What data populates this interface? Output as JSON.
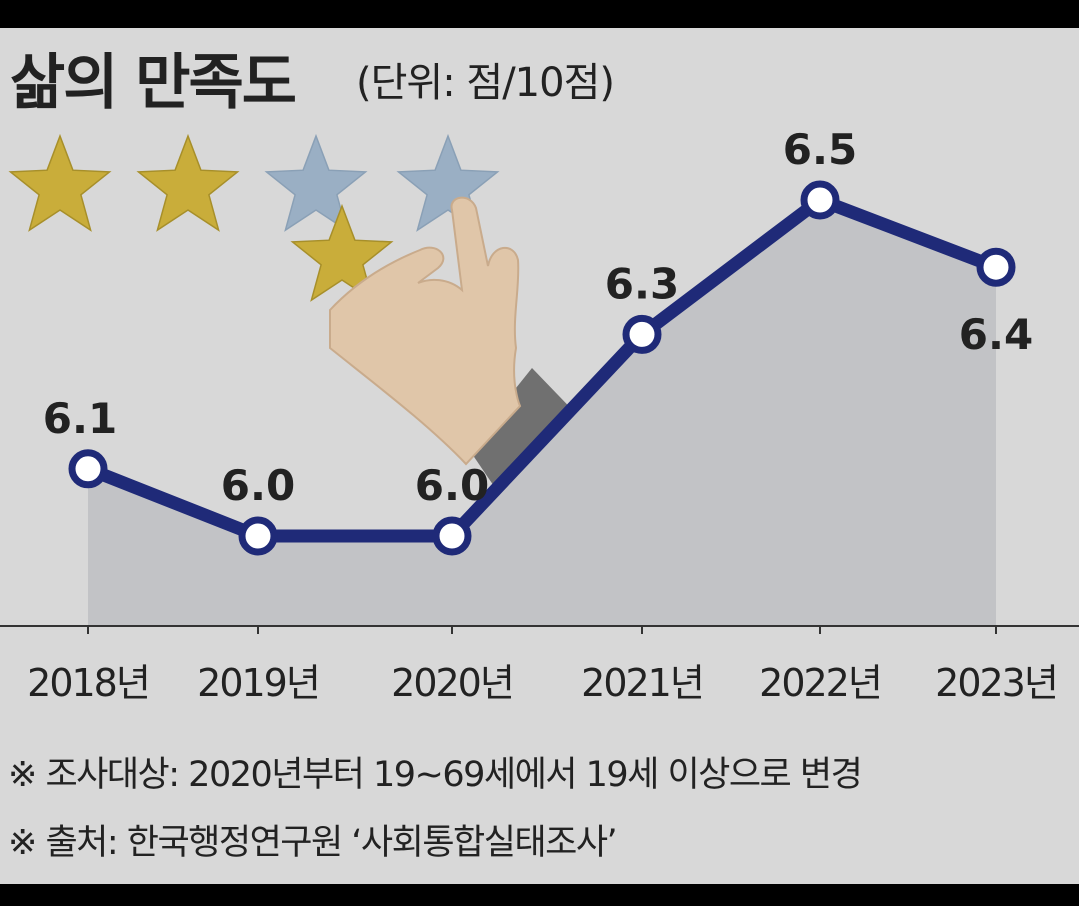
{
  "chart_data": {
    "type": "line",
    "title": "삶의 만족도",
    "unit": "(단위: 점/10점)",
    "categories": [
      "2018년",
      "2019년",
      "2020년",
      "2021년",
      "2022년",
      "2023년"
    ],
    "values": [
      6.1,
      6.0,
      6.0,
      6.3,
      6.5,
      6.4
    ],
    "value_labels": [
      "6.1",
      "6.0",
      "6.0",
      "6.3",
      "6.5",
      "6.4"
    ],
    "xlabel": "",
    "ylabel": "",
    "grid": false,
    "line_color": "#1f2a78",
    "area_color": "#c2c3c6"
  },
  "notes": [
    "※ 조사대상: 2020년부터 19~69세에서 19세 이상으로 변경",
    "※ 출처: 한국행정연구원 ‘사회통합실태조사’"
  ],
  "illustration": {
    "icons": [
      "star-icon",
      "hand-icon"
    ],
    "stars_filled": 3,
    "stars_total": 5,
    "star_gold": "#c9ad3a",
    "star_blue": "#9aafc4"
  }
}
